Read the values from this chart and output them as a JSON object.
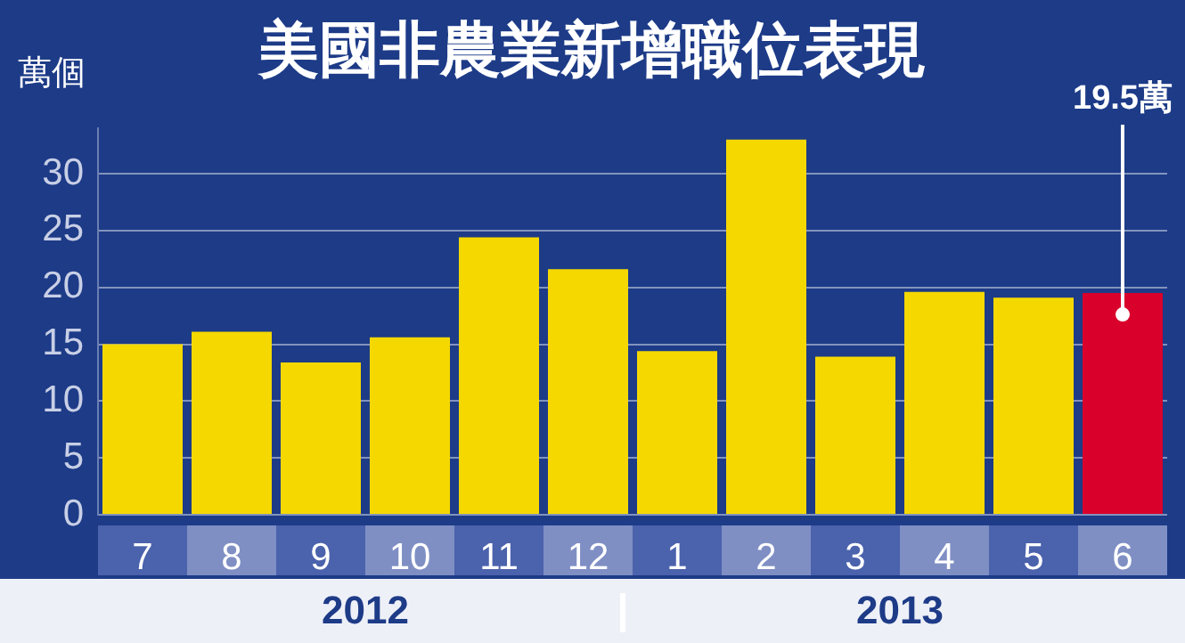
{
  "chart_data": {
    "type": "bar",
    "title": "美國非農業新增職位表現",
    "ylabel": "萬個",
    "categories": [
      "7",
      "8",
      "9",
      "10",
      "11",
      "12",
      "1",
      "2",
      "3",
      "4",
      "5",
      "6"
    ],
    "values": [
      15.0,
      16.1,
      13.4,
      15.6,
      24.4,
      21.6,
      14.4,
      33.0,
      13.9,
      19.6,
      19.1,
      19.5
    ],
    "colors": [
      "#f5d800",
      "#f5d800",
      "#f5d800",
      "#f5d800",
      "#f5d800",
      "#f5d800",
      "#f5d800",
      "#f5d800",
      "#f5d800",
      "#f5d800",
      "#f5d800",
      "#d9002b"
    ],
    "value_labels": [
      null,
      null,
      null,
      null,
      null,
      null,
      null,
      null,
      null,
      null,
      null,
      "19.5萬"
    ],
    "ylim": [
      0,
      34
    ],
    "yticks": [
      0,
      5,
      10,
      15,
      20,
      25,
      30
    ],
    "grid": "y",
    "annotations": [
      "2012",
      "2013"
    ]
  }
}
